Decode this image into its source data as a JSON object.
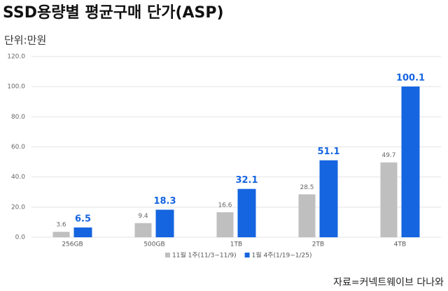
{
  "chart_data": {
    "type": "bar",
    "title": "SSD용량별 평균구매 단가(ASP)",
    "subtitle": "단위:만원",
    "source": "자료=커넥트웨이브 다나와",
    "categories": [
      "256GB",
      "500GB",
      "1TB",
      "2TB",
      "4TB"
    ],
    "series": [
      {
        "name": "11월 1주(11/3~11/9)",
        "color": "#bfbfbf",
        "values": [
          3.6,
          9.4,
          16.6,
          28.5,
          49.7
        ]
      },
      {
        "name": "1월 4주(1/19~1/25)",
        "color": "#1565e0",
        "values": [
          6.5,
          18.3,
          32.1,
          51.1,
          100.1
        ]
      }
    ],
    "ylim": [
      0,
      120
    ],
    "yticks": [
      {
        "value": 0,
        "label": "0.0"
      },
      {
        "value": 20,
        "label": "20.0"
      },
      {
        "value": 40,
        "label": "40.0"
      },
      {
        "value": 60,
        "label": "60.0"
      },
      {
        "value": 80,
        "label": "80.0"
      },
      {
        "value": 100,
        "label": "100.0"
      },
      {
        "value": 120,
        "label": "120.0"
      }
    ],
    "grid": true,
    "legend": "bottom"
  }
}
